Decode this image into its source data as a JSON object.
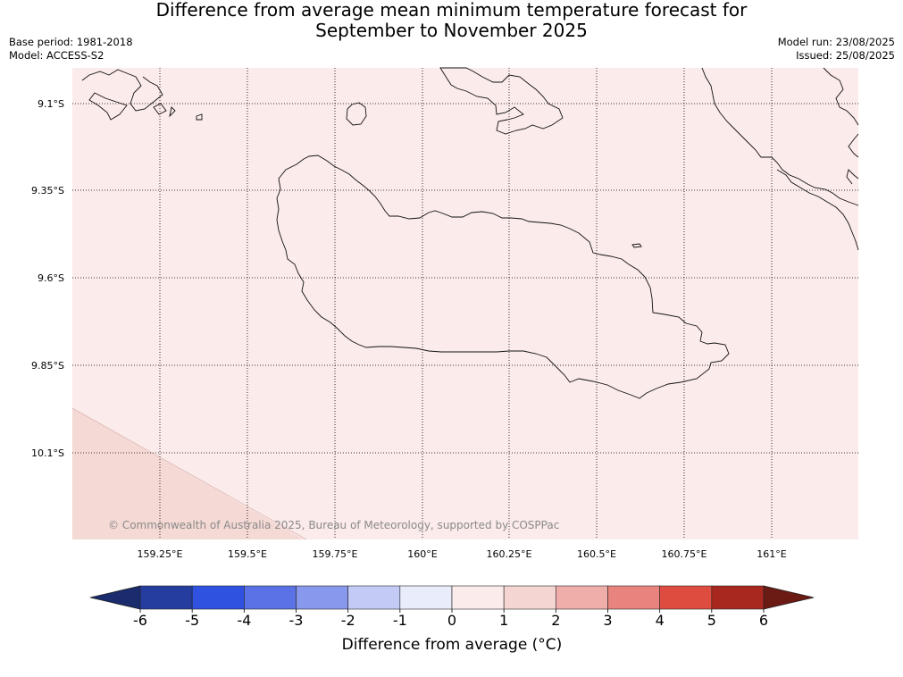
{
  "title": {
    "line1": "Difference from average mean minimum temperature forecast for",
    "line2": "September to November 2025"
  },
  "meta_left": {
    "base_period": "Base period: 1981-2018",
    "model": "Model: ACCESS-S2"
  },
  "meta_right": {
    "model_run": "Model run: 23/08/2025",
    "issued": "Issued: 25/08/2025"
  },
  "map": {
    "background_color": "#fbebea",
    "anomaly_patch_color": "#f5d9d5",
    "latitude_labels": [
      "9.1°S",
      "9.35°S",
      "9.6°S",
      "9.85°S",
      "10.1°S"
    ],
    "longitude_labels": [
      "159.25°E",
      "159.5°E",
      "159.75°E",
      "160°E",
      "160.25°E",
      "160.5°E",
      "160.75°E",
      "161°E"
    ],
    "copyright": "© Commonwealth of Australia 2025, Bureau of Meteorology, supported by COSPPac"
  },
  "colorbar": {
    "title": "Difference from average (°C)",
    "ticks": [
      "-6",
      "-5",
      "-4",
      "-3",
      "-2",
      "-1",
      "0",
      "1",
      "2",
      "3",
      "4",
      "5",
      "6"
    ],
    "colors": [
      "#253d9e",
      "#2f52e0",
      "#5b72e6",
      "#8898ec",
      "#c3caf5",
      "#e9ecfb",
      "#fbebea",
      "#f5d5d1",
      "#efaeaa",
      "#e8837d",
      "#de4c40",
      "#a82820"
    ],
    "under_color": "#1a2b6e",
    "over_color": "#6b1a14"
  }
}
